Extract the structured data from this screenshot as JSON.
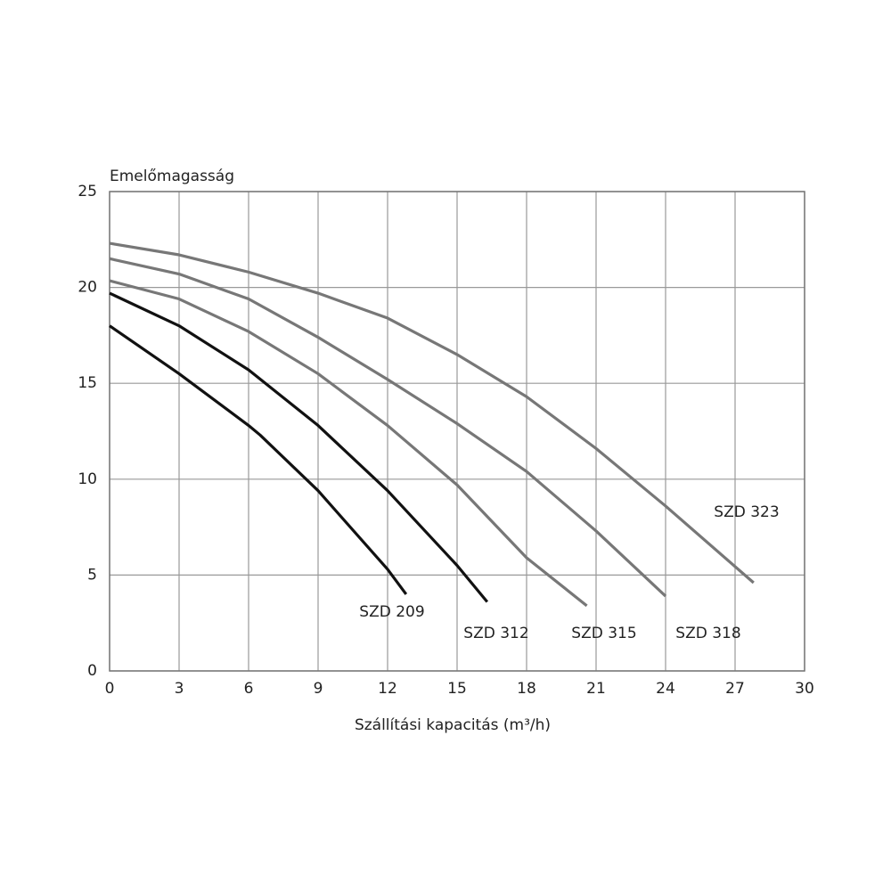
{
  "chart_data": {
    "type": "line",
    "y_label": "Emelőmagasság",
    "x_label": "Szállítási kapacitás (m³/h)",
    "xlim": [
      0,
      30
    ],
    "xticks": [
      0,
      3,
      6,
      9,
      12,
      15,
      18,
      21,
      24,
      27,
      30
    ],
    "ylim": [
      0,
      25
    ],
    "yticks": [
      0,
      5,
      10,
      15,
      20,
      25
    ],
    "grid": true,
    "series": [
      {
        "name": "SZD 209",
        "color": "#111111",
        "x": [
          0,
          3,
          6,
          6.5,
          9,
          12,
          12.8
        ],
        "values": [
          18.0,
          15.5,
          12.8,
          12.3,
          9.4,
          5.3,
          4.0
        ]
      },
      {
        "name": "SZD 312",
        "color": "#111111",
        "x": [
          0,
          3,
          6,
          9,
          12,
          15,
          16.3
        ],
        "values": [
          19.7,
          18.0,
          15.7,
          12.8,
          9.4,
          5.5,
          3.6
        ]
      },
      {
        "name": "SZD 315",
        "color": "#777777",
        "x": [
          0,
          3,
          6,
          9,
          12,
          15,
          18,
          20.6
        ],
        "values": [
          20.35,
          19.4,
          17.7,
          15.5,
          12.8,
          9.7,
          5.9,
          3.4
        ]
      },
      {
        "name": "SZD 318",
        "color": "#777777",
        "x": [
          0,
          3,
          6,
          9,
          12,
          15,
          18,
          21,
          24
        ],
        "values": [
          21.5,
          20.7,
          19.4,
          17.4,
          15.2,
          12.9,
          10.4,
          7.3,
          3.9
        ]
      },
      {
        "name": "SZD 323",
        "color": "#777777",
        "x": [
          0,
          3,
          6,
          9,
          12,
          15,
          18,
          21,
          24,
          27.8
        ],
        "values": [
          22.3,
          21.7,
          20.8,
          19.7,
          18.4,
          16.5,
          14.3,
          11.6,
          8.6,
          4.6
        ]
      }
    ]
  }
}
